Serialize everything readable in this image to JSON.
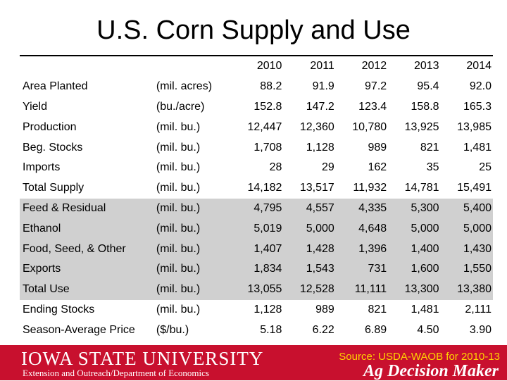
{
  "title": "U.S. Corn Supply and Use",
  "years": [
    "2010",
    "2011",
    "2012",
    "2013",
    "2014"
  ],
  "rows": [
    {
      "label": "Area Planted",
      "unit": "(mil. acres)",
      "values": [
        "88.2",
        "91.9",
        "97.2",
        "95.4",
        "92.0"
      ],
      "shaded": false
    },
    {
      "label": "Yield",
      "unit": "(bu./acre)",
      "values": [
        "152.8",
        "147.2",
        "123.4",
        "158.8",
        "165.3"
      ],
      "shaded": false
    },
    {
      "label": "Production",
      "unit": "(mil. bu.)",
      "values": [
        "12,447",
        "12,360",
        "10,780",
        "13,925",
        "13,985"
      ],
      "shaded": false
    },
    {
      "label": "Beg. Stocks",
      "unit": "(mil. bu.)",
      "values": [
        "1,708",
        "1,128",
        "989",
        "821",
        "1,481"
      ],
      "shaded": false
    },
    {
      "label": "Imports",
      "unit": "(mil. bu.)",
      "values": [
        "28",
        "29",
        "162",
        "35",
        "25"
      ],
      "shaded": false
    },
    {
      "label": "Total Supply",
      "unit": "(mil. bu.)",
      "values": [
        "14,182",
        "13,517",
        "11,932",
        "14,781",
        "15,491"
      ],
      "shaded": false
    },
    {
      "label": "Feed & Residual",
      "unit": "(mil. bu.)",
      "values": [
        "4,795",
        "4,557",
        "4,335",
        "5,300",
        "5,400"
      ],
      "shaded": true
    },
    {
      "label": "Ethanol",
      "unit": "(mil. bu.)",
      "values": [
        "5,019",
        "5,000",
        "4,648",
        "5,000",
        "5,000"
      ],
      "shaded": true
    },
    {
      "label": "Food, Seed, & Other",
      "unit": "(mil. bu.)",
      "values": [
        "1,407",
        "1,428",
        "1,396",
        "1,400",
        "1,430"
      ],
      "shaded": true
    },
    {
      "label": "Exports",
      "unit": "(mil. bu.)",
      "values": [
        "1,834",
        "1,543",
        "731",
        "1,600",
        "1,550"
      ],
      "shaded": true
    },
    {
      "label": "Total Use",
      "unit": "(mil. bu.)",
      "values": [
        "13,055",
        "12,528",
        "11,111",
        "13,300",
        "13,380"
      ],
      "shaded": true
    },
    {
      "label": "Ending Stocks",
      "unit": "(mil. bu.)",
      "values": [
        "1,128",
        "989",
        "821",
        "1,481",
        "2,111"
      ],
      "shaded": false
    },
    {
      "label": "Season-Average Price",
      "unit": "($/bu.)",
      "values": [
        "5.18",
        "6.22",
        "6.89",
        "4.50",
        "3.90"
      ],
      "shaded": false
    }
  ],
  "footer": {
    "logo": "IOWA STATE UNIVERSITY",
    "extension": "Extension and Outreach/Department of Economics",
    "source": "Source: USDA-WAOB for 2010-13",
    "brand": "Ag Decision Maker",
    "color": "#c8102e"
  }
}
